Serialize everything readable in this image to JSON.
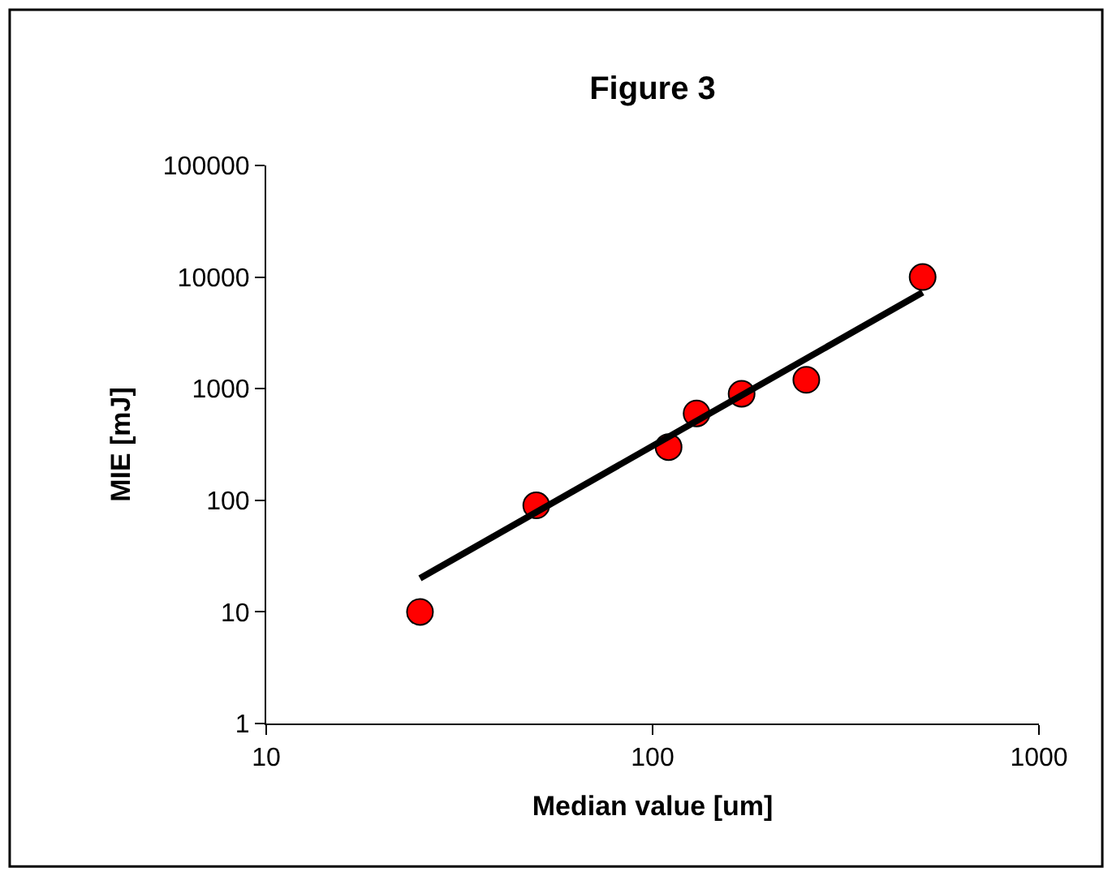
{
  "chart_data": {
    "type": "scatter",
    "title": "Figure 3",
    "xlabel": "Median value [um]",
    "ylabel": "MIE [mJ]",
    "log": "xy",
    "marker": "circle",
    "xlim": [
      10,
      1000
    ],
    "xticks": [
      10,
      100,
      1000
    ],
    "ylim": [
      1,
      100000
    ],
    "yticks": [
      1,
      10,
      100,
      1000,
      10000,
      100000
    ],
    "series": [
      {
        "color": "#ff0000",
        "x": [
          25,
          50,
          110,
          130,
          170,
          250,
          500
        ],
        "values": [
          10,
          90,
          300,
          600,
          900,
          1200,
          10000
        ]
      },
      {
        "type": "line",
        "color": "#000000",
        "x": [
          25,
          500
        ],
        "values": [
          20,
          7300
        ],
        "marker": "none",
        "line_style": "solid"
      }
    ]
  }
}
